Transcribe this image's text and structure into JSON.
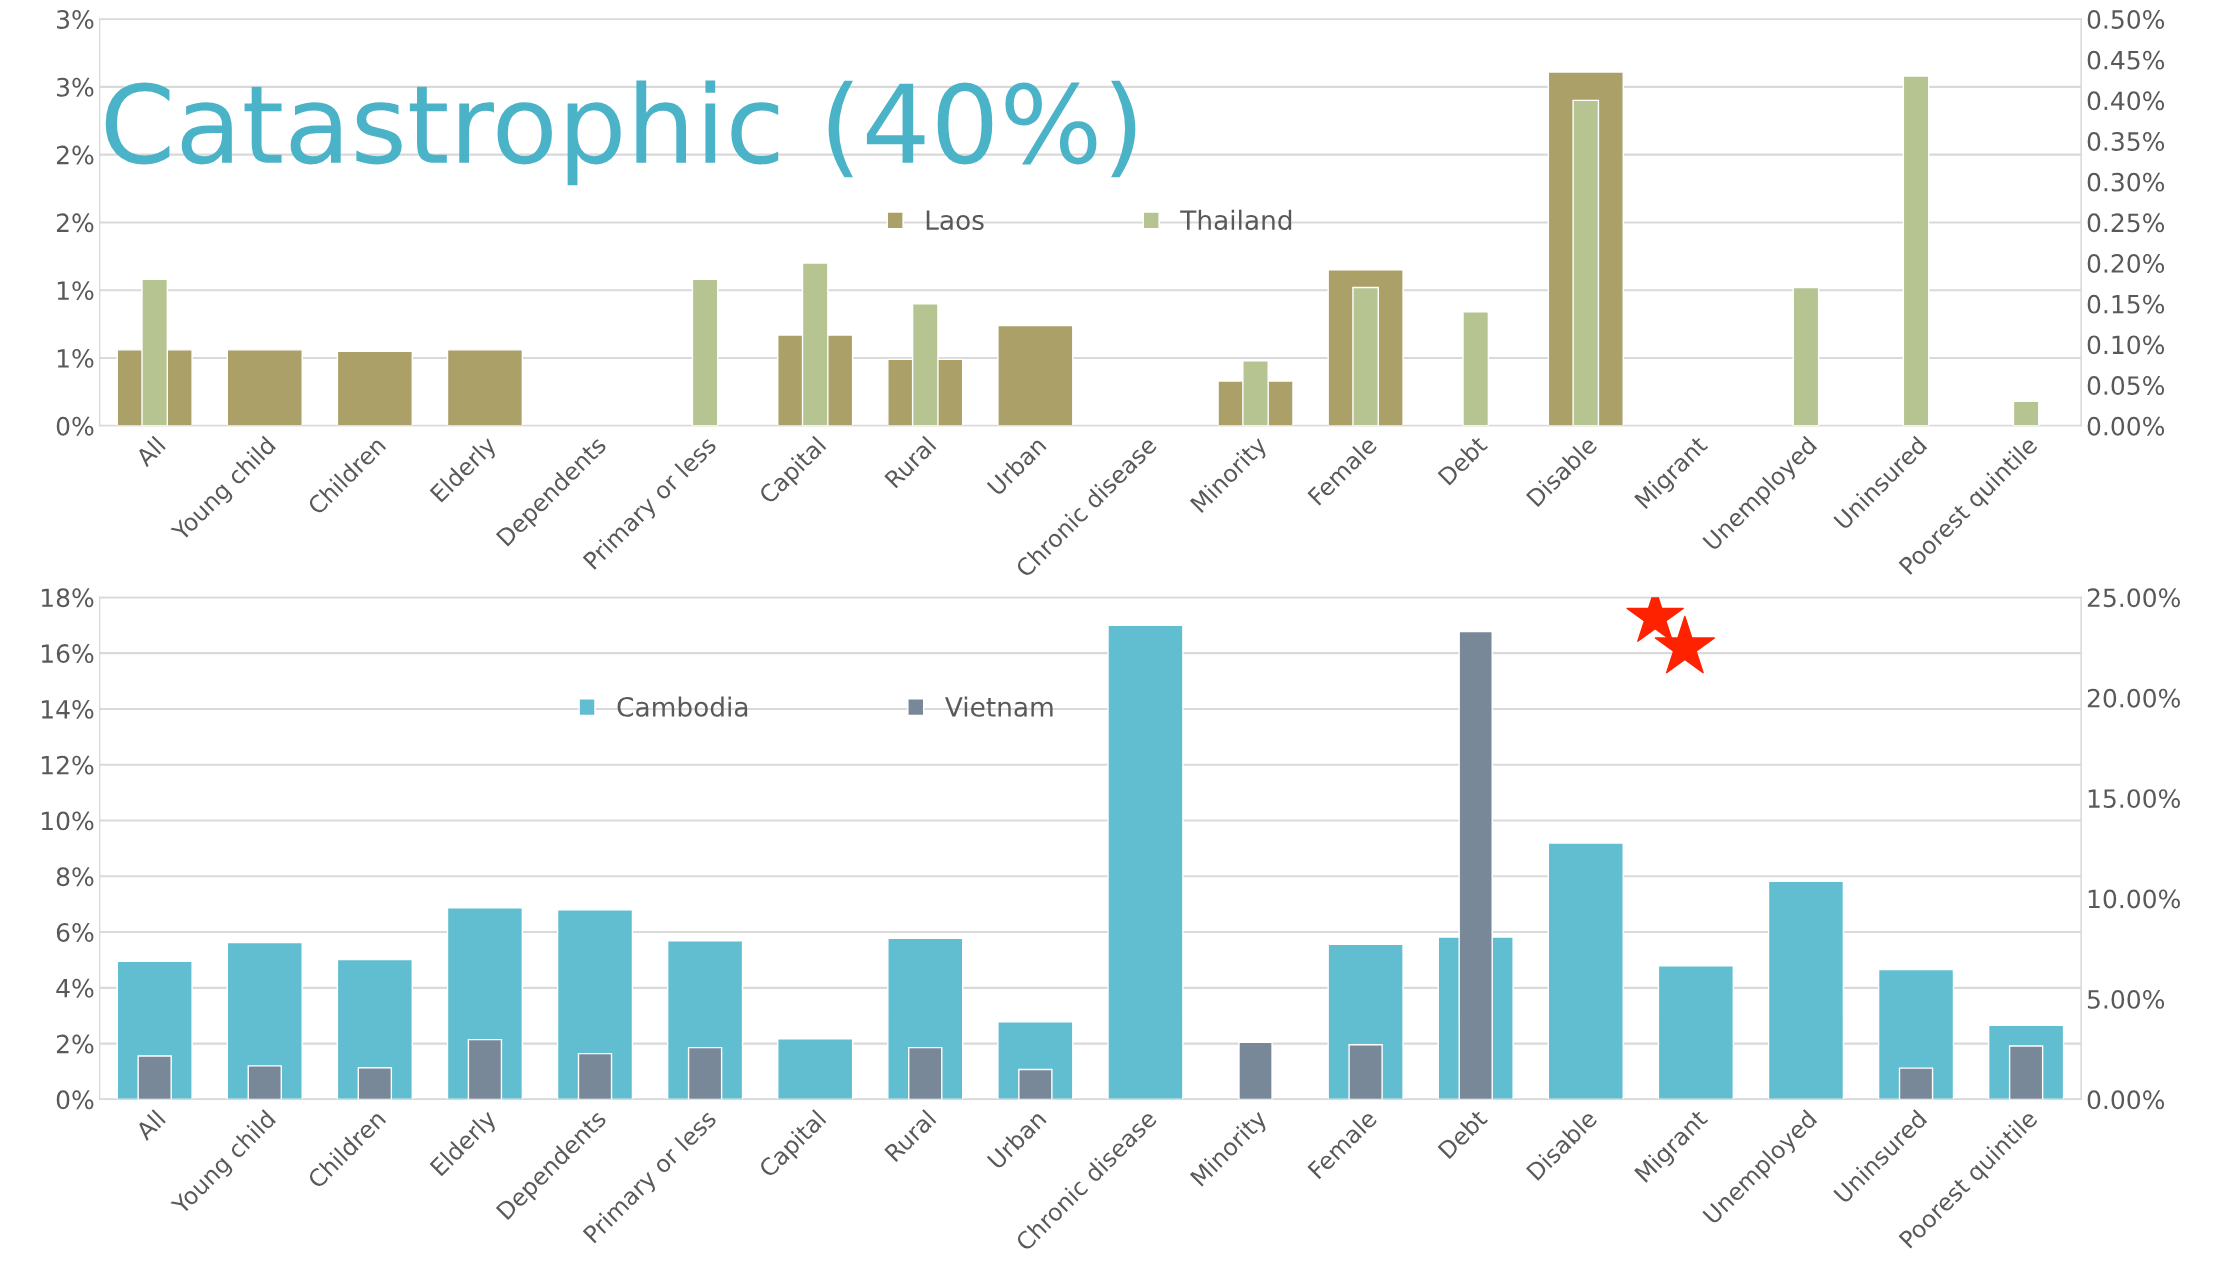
{
  "chart_data": [
    {
      "type": "bar",
      "title": "Catastrophic (40%)",
      "categories": [
        "All",
        "Young child",
        "Children",
        "Elderly",
        "Dependents",
        "Primary or less",
        "Capital",
        "Rural",
        "Urban",
        "Chronic disease",
        "Minority",
        "Female",
        "Debt",
        "Disable",
        "Migrant",
        "Unemployed",
        "Uninsured",
        "Poorest quintile"
      ],
      "series": [
        {
          "name": "Laos",
          "color": "#aaa068",
          "values": [
            0.56,
            0.56,
            0.55,
            0.56,
            null,
            null,
            0.67,
            0.49,
            0.74,
            null,
            0.33,
            1.15,
            null,
            2.61,
            null,
            null,
            null,
            null
          ]
        },
        {
          "name": "Thailand",
          "color": "#b5c491",
          "axis": "y2",
          "values": [
            0.18,
            null,
            null,
            null,
            null,
            0.18,
            0.2,
            0.15,
            null,
            null,
            0.08,
            0.17,
            0.14,
            0.4,
            null,
            0.17,
            0.43,
            0.03
          ]
        }
      ],
      "ylim": [
        0,
        3
      ],
      "yticks": [
        {
          "value": 0,
          "label": "0%"
        },
        {
          "value": 0.5,
          "label": "1%"
        },
        {
          "value": 1,
          "label": "1%"
        },
        {
          "value": 1.5,
          "label": "2%"
        },
        {
          "value": 2,
          "label": "2%"
        },
        {
          "value": 2.5,
          "label": "3%"
        },
        {
          "value": 3,
          "label": "3%"
        }
      ],
      "y2lim": [
        0,
        0.5
      ],
      "y2ticks": [
        {
          "value": 0,
          "label": "0.00%"
        },
        {
          "value": 0.05,
          "label": "0.05%"
        },
        {
          "value": 0.1,
          "label": "0.10%"
        },
        {
          "value": 0.15,
          "label": "0.15%"
        },
        {
          "value": 0.2,
          "label": "0.20%"
        },
        {
          "value": 0.25,
          "label": "0.25%"
        },
        {
          "value": 0.3,
          "label": "0.30%"
        },
        {
          "value": 0.35,
          "label": "0.35%"
        },
        {
          "value": 0.4,
          "label": "0.40%"
        },
        {
          "value": 0.45,
          "label": "0.45%"
        },
        {
          "value": 0.5,
          "label": "0.50%"
        }
      ],
      "grid": "y",
      "legend": "center"
    },
    {
      "type": "bar",
      "categories": [
        "All",
        "Young child",
        "Children",
        "Elderly",
        "Dependents",
        "Primary or less",
        "Capital",
        "Rural",
        "Urban",
        "Chronic disease",
        "Minority",
        "Female",
        "Debt",
        "Disable",
        "Migrant",
        "Unemployed",
        "Uninsured",
        "Poorest quintile"
      ],
      "series": [
        {
          "name": "Cambodia",
          "color": "#60bed0",
          "values": [
            4.95,
            5.62,
            5.01,
            6.87,
            6.8,
            5.69,
            2.17,
            5.78,
            2.78,
            17.0,
            null,
            5.56,
            5.82,
            9.19,
            4.79,
            7.82,
            4.66,
            2.66
          ]
        },
        {
          "name": "Vietnam",
          "color": "#788899",
          "axis": "y2",
          "values": [
            2.16,
            1.67,
            1.58,
            2.98,
            2.28,
            2.58,
            null,
            2.58,
            1.49,
            null,
            2.84,
            2.72,
            23.3,
            null,
            null,
            null,
            1.56,
            2.66
          ]
        }
      ],
      "ylim": [
        0,
        18
      ],
      "yticks": [
        {
          "value": 0,
          "label": "0%"
        },
        {
          "value": 2,
          "label": "2%"
        },
        {
          "value": 4,
          "label": "4%"
        },
        {
          "value": 6,
          "label": "6%"
        },
        {
          "value": 8,
          "label": "8%"
        },
        {
          "value": 10,
          "label": "10%"
        },
        {
          "value": 12,
          "label": "12%"
        },
        {
          "value": 14,
          "label": "14%"
        },
        {
          "value": 16,
          "label": "16%"
        },
        {
          "value": 18,
          "label": "18%"
        }
      ],
      "y2lim": [
        0,
        25
      ],
      "y2ticks": [
        {
          "value": 0,
          "label": "0.00%"
        },
        {
          "value": 5,
          "label": "5.00%"
        },
        {
          "value": 10,
          "label": "10.00%"
        },
        {
          "value": 15,
          "label": "15.00%"
        },
        {
          "value": 20,
          "label": "20.00%"
        },
        {
          "value": 25,
          "label": "25.00%"
        }
      ],
      "grid": "y",
      "legend": "top left"
    }
  ]
}
